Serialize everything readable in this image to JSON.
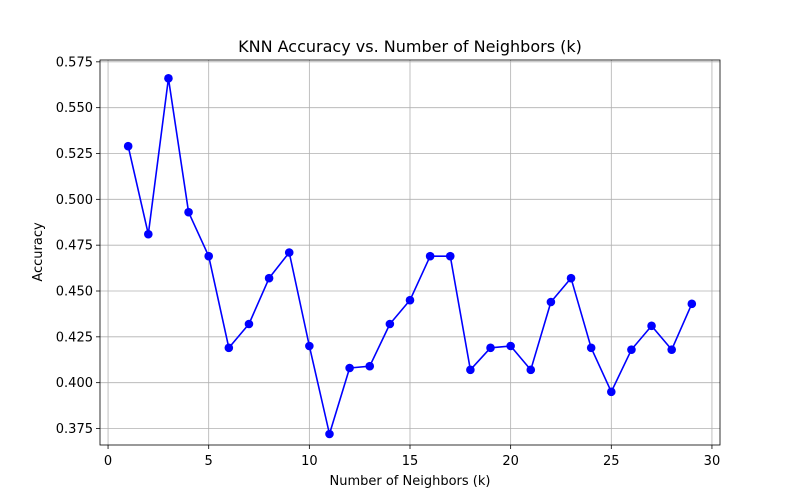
{
  "chart_data": {
    "type": "line",
    "title": "KNN Accuracy vs. Number of Neighbors (k)",
    "xlabel": "Number of Neighbors (k)",
    "ylabel": "Accuracy",
    "xlim": [
      -0.4,
      30.4
    ],
    "ylim": [
      0.366,
      0.576
    ],
    "x_ticks": [
      0,
      5,
      10,
      15,
      20,
      25,
      30
    ],
    "x_tick_labels": [
      "0",
      "5",
      "10",
      "15",
      "20",
      "25",
      "30"
    ],
    "y_ticks": [
      0.375,
      0.4,
      0.425,
      0.45,
      0.475,
      0.5,
      0.525,
      0.55,
      0.575
    ],
    "y_tick_labels": [
      "0.375",
      "0.400",
      "0.425",
      "0.450",
      "0.475",
      "0.500",
      "0.525",
      "0.550",
      "0.575"
    ],
    "grid": true,
    "series": [
      {
        "color": "#0000ff",
        "marker": "circle",
        "x": [
          1,
          2,
          3,
          4,
          5,
          6,
          7,
          8,
          9,
          10,
          11,
          12,
          13,
          14,
          15,
          16,
          17,
          18,
          19,
          20,
          21,
          22,
          23,
          24,
          25,
          26,
          27,
          28,
          29
        ],
        "values": [
          0.529,
          0.481,
          0.566,
          0.493,
          0.469,
          0.419,
          0.432,
          0.457,
          0.471,
          0.42,
          0.372,
          0.408,
          0.409,
          0.432,
          0.445,
          0.469,
          0.469,
          0.407,
          0.419,
          0.42,
          0.407,
          0.444,
          0.457,
          0.419,
          0.395,
          0.418,
          0.431,
          0.418,
          0.443
        ]
      }
    ]
  }
}
